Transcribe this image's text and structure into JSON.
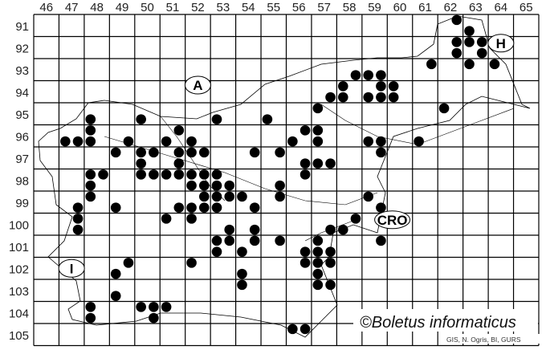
{
  "map": {
    "columns": [
      "46",
      "47",
      "48",
      "49",
      "50",
      "51",
      "52",
      "53",
      "54",
      "55",
      "56",
      "57",
      "58",
      "59",
      "60",
      "61",
      "62",
      "63",
      "64",
      "65"
    ],
    "rows": [
      "91",
      "92",
      "93",
      "94",
      "95",
      "96",
      "97",
      "98",
      "99",
      "100",
      "101",
      "102",
      "103",
      "104",
      "105"
    ],
    "regions": [
      {
        "id": "austria",
        "label": "A",
        "col": 52.5,
        "row": 94.2
      },
      {
        "id": "hungary",
        "label": "H",
        "col": 64.5,
        "row": 92.3
      },
      {
        "id": "italy",
        "label": "I",
        "col": 47.5,
        "row": 102.5
      },
      {
        "id": "croatia",
        "label": "CRO",
        "col": 60.2,
        "row": 100.3
      }
    ],
    "copyright": "©Boletus informaticus",
    "credit": "GIS, N. Ogris, BI, GURS",
    "dot_color": "#000000",
    "grid_color": "#000000",
    "records": [
      [
        62.75,
        91.25
      ],
      [
        63.25,
        91.75
      ],
      [
        62.75,
        92.25
      ],
      [
        63.25,
        92.25
      ],
      [
        63.75,
        92.25
      ],
      [
        62.75,
        92.75
      ],
      [
        63.75,
        92.75
      ],
      [
        61.75,
        93.25
      ],
      [
        63.25,
        93.25
      ],
      [
        64.25,
        93.25
      ],
      [
        58.75,
        93.75
      ],
      [
        59.25,
        93.75
      ],
      [
        59.75,
        93.75
      ],
      [
        58.25,
        94.25
      ],
      [
        59.75,
        94.25
      ],
      [
        60.25,
        94.25
      ],
      [
        57.75,
        94.75
      ],
      [
        58.25,
        94.75
      ],
      [
        59.25,
        94.75
      ],
      [
        59.75,
        94.75
      ],
      [
        60.25,
        94.75
      ],
      [
        57.25,
        95.25
      ],
      [
        62.25,
        95.25
      ],
      [
        48.25,
        95.75
      ],
      [
        50.25,
        95.75
      ],
      [
        53.25,
        95.75
      ],
      [
        55.25,
        95.75
      ],
      [
        48.25,
        96.25
      ],
      [
        51.75,
        96.25
      ],
      [
        56.75,
        96.25
      ],
      [
        57.25,
        96.25
      ],
      [
        47.25,
        96.75
      ],
      [
        47.75,
        96.75
      ],
      [
        48.25,
        96.75
      ],
      [
        49.75,
        96.75
      ],
      [
        51.25,
        96.75
      ],
      [
        52.25,
        96.75
      ],
      [
        56.25,
        96.75
      ],
      [
        57.25,
        96.75
      ],
      [
        59.25,
        96.75
      ],
      [
        59.75,
        96.75
      ],
      [
        61.25,
        96.75
      ],
      [
        49.25,
        97.25
      ],
      [
        50.25,
        97.25
      ],
      [
        50.75,
        97.25
      ],
      [
        51.75,
        97.25
      ],
      [
        52.25,
        97.25
      ],
      [
        52.75,
        97.25
      ],
      [
        54.75,
        97.25
      ],
      [
        55.75,
        97.25
      ],
      [
        59.75,
        97.25
      ],
      [
        50.25,
        97.75
      ],
      [
        51.75,
        97.75
      ],
      [
        56.75,
        97.75
      ],
      [
        57.25,
        97.75
      ],
      [
        57.75,
        97.75
      ],
      [
        48.25,
        98.25
      ],
      [
        48.75,
        98.25
      ],
      [
        50.25,
        98.25
      ],
      [
        50.75,
        98.25
      ],
      [
        51.25,
        98.25
      ],
      [
        51.75,
        98.25
      ],
      [
        52.25,
        98.25
      ],
      [
        52.75,
        98.25
      ],
      [
        53.25,
        98.25
      ],
      [
        56.75,
        98.25
      ],
      [
        48.25,
        98.75
      ],
      [
        52.25,
        98.75
      ],
      [
        52.75,
        98.75
      ],
      [
        53.25,
        98.75
      ],
      [
        53.75,
        98.75
      ],
      [
        55.75,
        98.75
      ],
      [
        48.25,
        99.25
      ],
      [
        52.75,
        99.25
      ],
      [
        53.25,
        99.25
      ],
      [
        53.75,
        99.25
      ],
      [
        54.25,
        99.25
      ],
      [
        55.75,
        99.25
      ],
      [
        59.25,
        99.25
      ],
      [
        47.75,
        99.75
      ],
      [
        49.25,
        99.75
      ],
      [
        51.75,
        99.75
      ],
      [
        52.25,
        99.75
      ],
      [
        52.75,
        99.75
      ],
      [
        53.25,
        99.75
      ],
      [
        54.75,
        99.75
      ],
      [
        59.75,
        99.75
      ],
      [
        47.75,
        100.25
      ],
      [
        51.25,
        100.25
      ],
      [
        52.25,
        100.25
      ],
      [
        58.75,
        100.25
      ],
      [
        47.75,
        100.75
      ],
      [
        53.75,
        100.75
      ],
      [
        54.75,
        100.75
      ],
      [
        57.75,
        100.75
      ],
      [
        58.25,
        100.75
      ],
      [
        53.25,
        101.25
      ],
      [
        53.75,
        101.25
      ],
      [
        54.75,
        101.25
      ],
      [
        55.75,
        101.25
      ],
      [
        57.25,
        101.25
      ],
      [
        59.75,
        101.25
      ],
      [
        53.25,
        101.75
      ],
      [
        54.25,
        101.75
      ],
      [
        56.75,
        101.75
      ],
      [
        57.25,
        101.75
      ],
      [
        57.75,
        101.75
      ],
      [
        49.75,
        102.25
      ],
      [
        52.25,
        102.25
      ],
      [
        56.75,
        102.25
      ],
      [
        57.25,
        102.25
      ],
      [
        57.75,
        102.25
      ],
      [
        49.25,
        102.75
      ],
      [
        54.25,
        102.75
      ],
      [
        57.25,
        102.75
      ],
      [
        54.25,
        103.25
      ],
      [
        57.25,
        103.25
      ],
      [
        57.75,
        103.25
      ],
      [
        49.25,
        103.75
      ],
      [
        48.25,
        104.25
      ],
      [
        50.25,
        104.25
      ],
      [
        50.75,
        104.25
      ],
      [
        51.25,
        104.25
      ],
      [
        48.25,
        104.75
      ],
      [
        50.75,
        104.75
      ],
      [
        56.25,
        105.25
      ],
      [
        56.75,
        105.25
      ]
    ]
  }
}
